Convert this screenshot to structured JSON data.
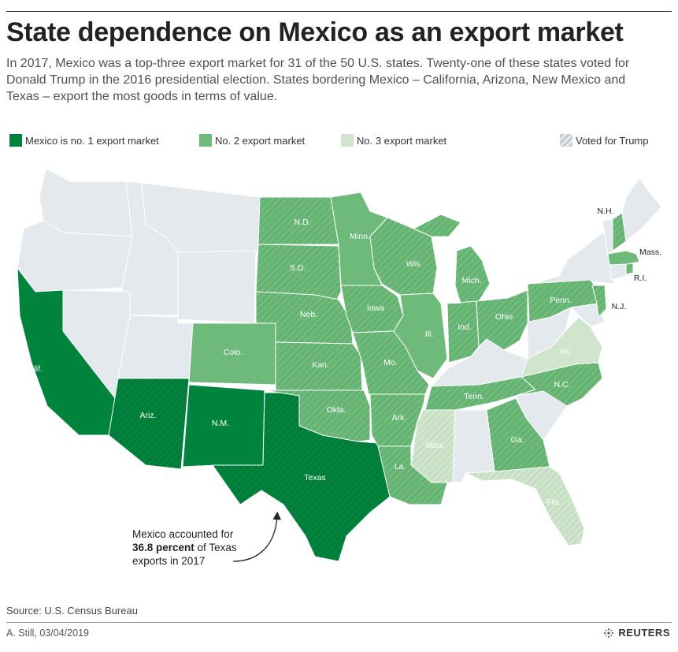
{
  "title": "State dependence on Mexico as an export market",
  "subtitle": "In 2017, Mexico was a top-three export market for 31 of the 50 U.S. states. Twenty-one of these states voted for Donald Trump in the 2016 presidential election. States bordering Mexico – California, Arizona, New Mexico and Texas – export the most goods in terms of value.",
  "legend": {
    "no1": "Mexico is no. 1 export market",
    "no2": "No. 2 export market",
    "no3": "No. 3 export market",
    "trump": "Voted for Trump"
  },
  "colors": {
    "no1": "#00843d",
    "no2": "#6dba7a",
    "no3": "#cfe6cd",
    "other": "#e4e9ed",
    "hatch": "#ffffff"
  },
  "states": [
    {
      "id": "calif",
      "label": "Calif.",
      "rank": 1,
      "trump": false
    },
    {
      "id": "ariz",
      "label": "Ariz.",
      "rank": 1,
      "trump": true
    },
    {
      "id": "nm",
      "label": "N.M.",
      "rank": 1,
      "trump": false
    },
    {
      "id": "texas",
      "label": "Texas",
      "rank": 1,
      "trump": true
    },
    {
      "id": "colo",
      "label": "Colo.",
      "rank": 2,
      "trump": false
    },
    {
      "id": "nd",
      "label": "N.D.",
      "rank": 2,
      "trump": true
    },
    {
      "id": "sd",
      "label": "S.D.",
      "rank": 2,
      "trump": true
    },
    {
      "id": "neb",
      "label": "Neb.",
      "rank": 2,
      "trump": true
    },
    {
      "id": "kan",
      "label": "Kan.",
      "rank": 2,
      "trump": true
    },
    {
      "id": "okla",
      "label": "Okla.",
      "rank": 2,
      "trump": true
    },
    {
      "id": "minn",
      "label": "Minn.",
      "rank": 2,
      "trump": false
    },
    {
      "id": "iowa",
      "label": "Iowa",
      "rank": 2,
      "trump": true
    },
    {
      "id": "mo",
      "label": "Mo.",
      "rank": 2,
      "trump": true
    },
    {
      "id": "ark",
      "label": "Ark.",
      "rank": 2,
      "trump": true
    },
    {
      "id": "la",
      "label": "La.",
      "rank": 2,
      "trump": true
    },
    {
      "id": "wis",
      "label": "Wis.",
      "rank": 2,
      "trump": true
    },
    {
      "id": "ill",
      "label": "Ill.",
      "rank": 2,
      "trump": false
    },
    {
      "id": "mich",
      "label": "Mich.",
      "rank": 2,
      "trump": true
    },
    {
      "id": "ind",
      "label": "Ind.",
      "rank": 2,
      "trump": true
    },
    {
      "id": "ohio",
      "label": "Ohio",
      "rank": 2,
      "trump": true
    },
    {
      "id": "tenn",
      "label": "Tenn.",
      "rank": 2,
      "trump": true
    },
    {
      "id": "ga",
      "label": "Ga.",
      "rank": 2,
      "trump": true
    },
    {
      "id": "nc",
      "label": "N.C.",
      "rank": 2,
      "trump": true
    },
    {
      "id": "penn",
      "label": "Penn.",
      "rank": 2,
      "trump": true
    },
    {
      "id": "nj",
      "label": "N.J.",
      "rank": 2,
      "trump": false
    },
    {
      "id": "nh",
      "label": "N.H.",
      "rank": 2,
      "trump": false
    },
    {
      "id": "mass",
      "label": "Mass.",
      "rank": 2,
      "trump": false
    },
    {
      "id": "ri",
      "label": "R.I.",
      "rank": 2,
      "trump": false
    },
    {
      "id": "miss",
      "label": "Miss.",
      "rank": 3,
      "trump": true
    },
    {
      "id": "fla",
      "label": "Fla.",
      "rank": 3,
      "trump": true
    },
    {
      "id": "va",
      "label": "Va.",
      "rank": 3,
      "trump": false
    }
  ],
  "annotation": {
    "line1": "Mexico accounted for",
    "bold": "36.8 percent",
    "line2_rest": " of Texas",
    "line3": "exports in 2017"
  },
  "source": "Source: U.S. Census Bureau",
  "byline": "A. Still,  03/04/2019",
  "brand": "REUTERS"
}
